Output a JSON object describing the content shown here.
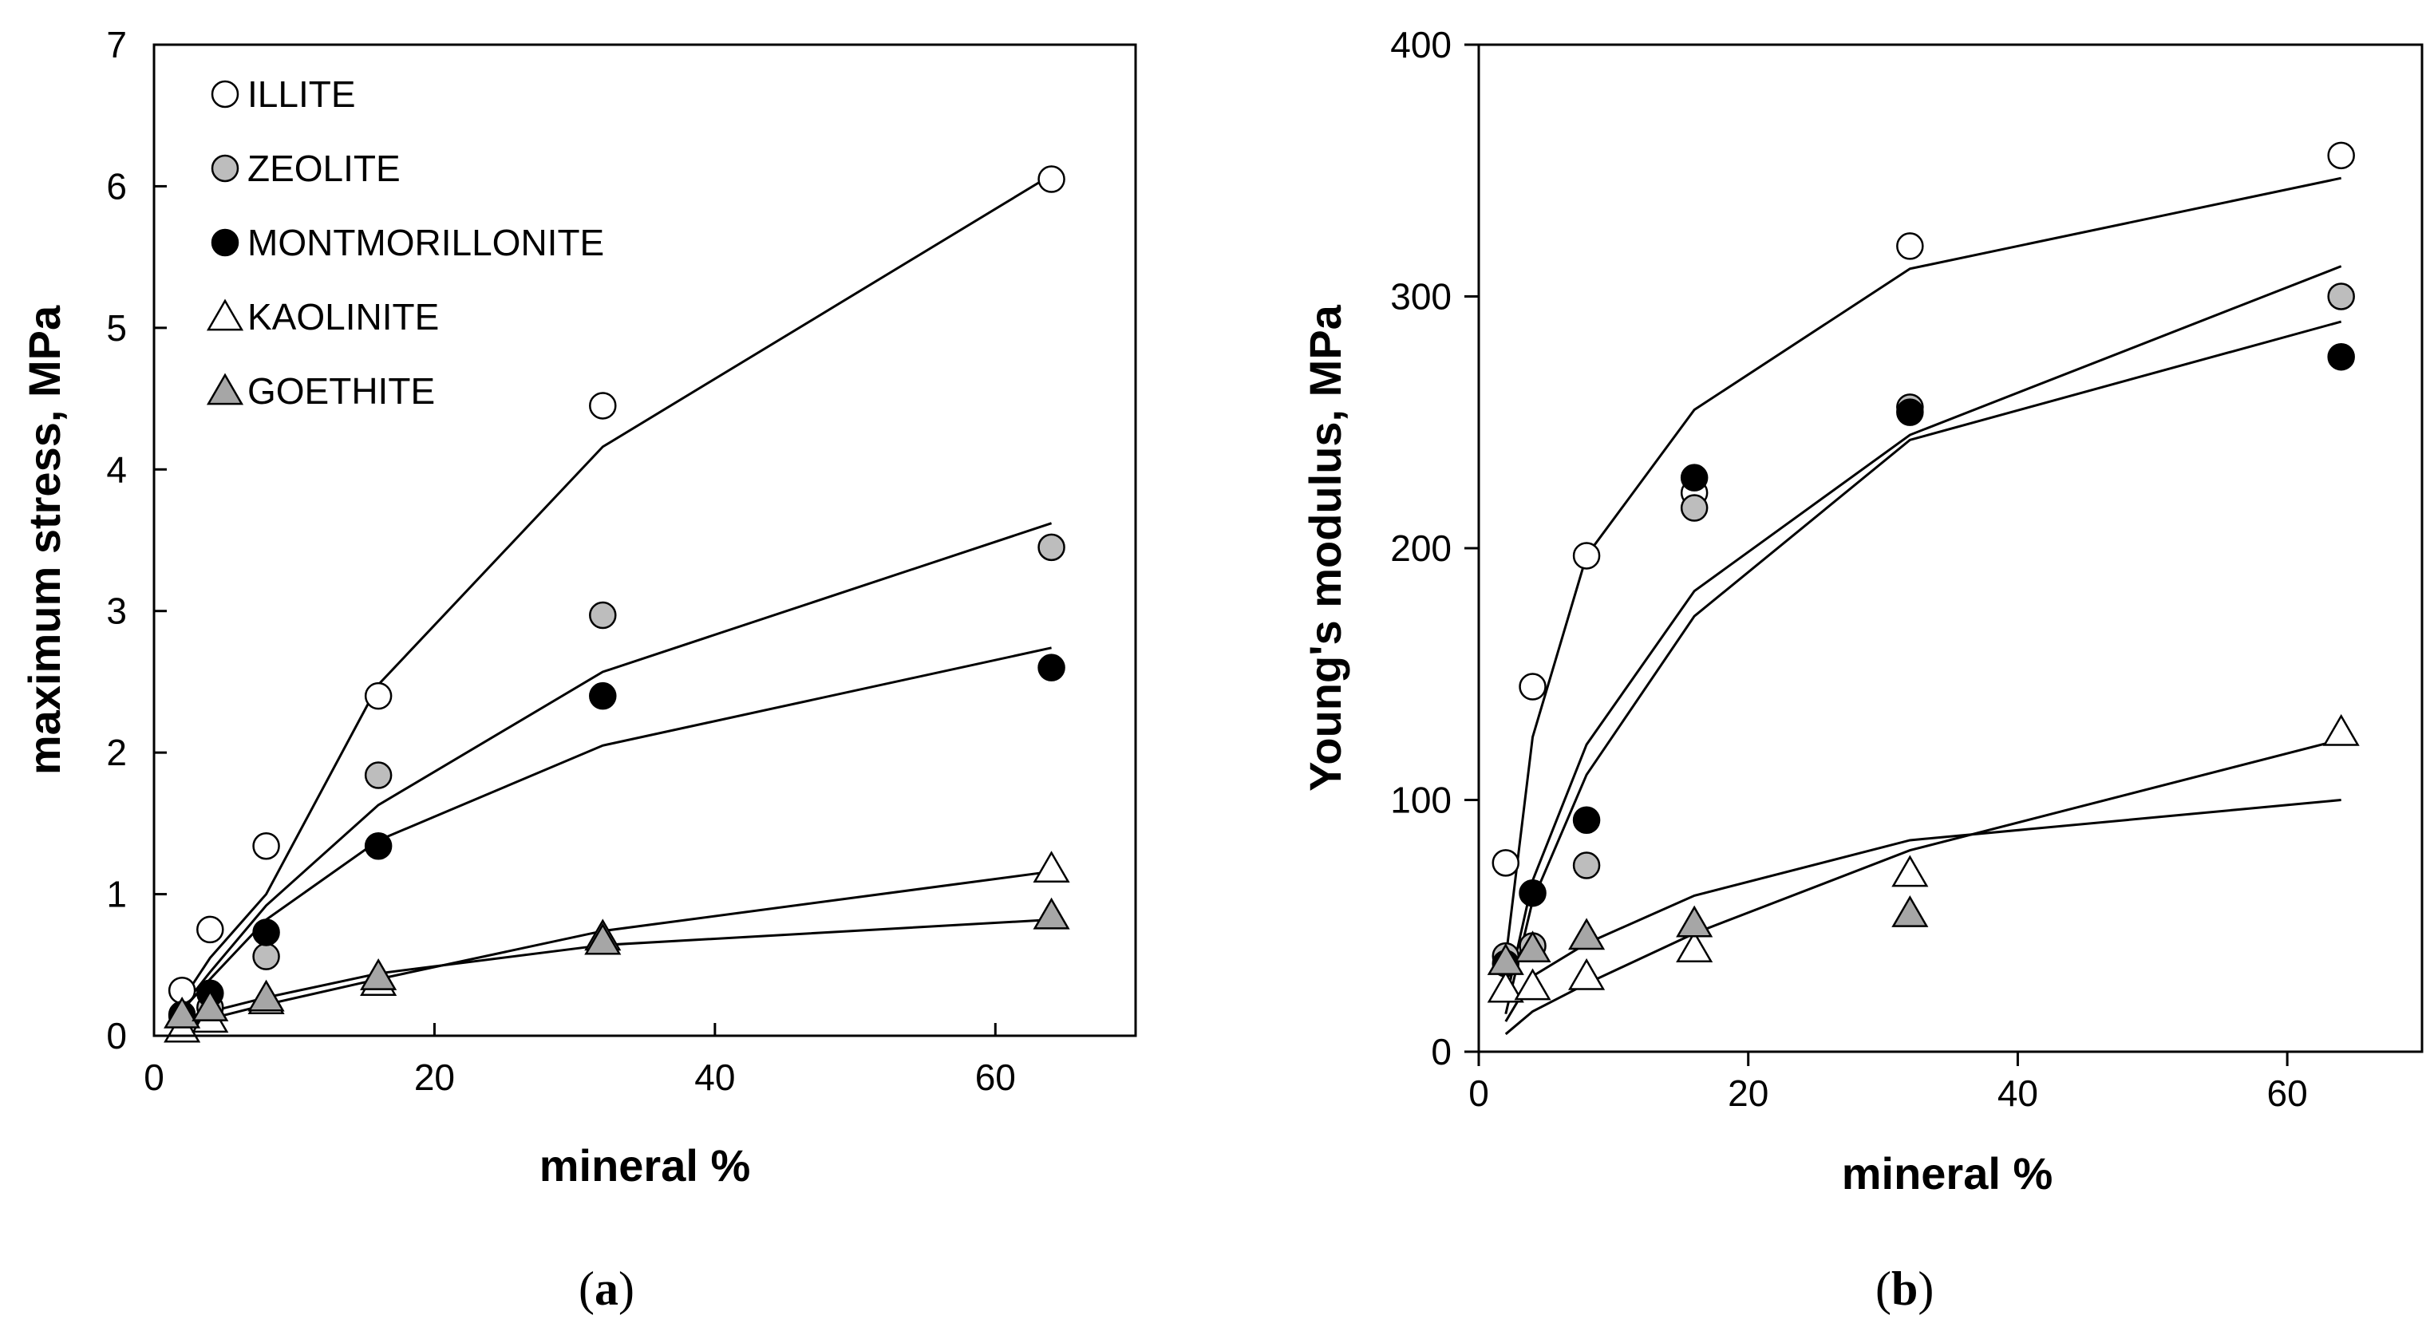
{
  "chart_data": [
    {
      "id": "a",
      "type": "scatter",
      "caption": "a",
      "xlabel": "mineral %",
      "ylabel": "maximum stress, MPa",
      "xlim": [
        0,
        70
      ],
      "ylim": [
        0,
        7
      ],
      "xticks": [
        0,
        20,
        40,
        60
      ],
      "yticks": [
        0,
        1,
        2,
        3,
        4,
        5,
        6,
        7
      ],
      "legend_position": "top-left",
      "series": [
        {
          "name": "ILLITE",
          "marker": "circle",
          "fill": "#ffffff",
          "x": [
            2,
            4,
            8,
            16,
            32,
            64
          ],
          "y": [
            0.32,
            0.75,
            1.34,
            2.4,
            4.45,
            6.05
          ],
          "fit": {
            "x": [
              2,
              4,
              8,
              16,
              32,
              64
            ],
            "y": [
              0.25,
              0.55,
              1.0,
              2.48,
              4.16,
              6.08
            ]
          }
        },
        {
          "name": "ZEOLITE",
          "marker": "circle",
          "fill": "#bdbdbd",
          "x": [
            2,
            4,
            8,
            16,
            32,
            64
          ],
          "y": [
            0.15,
            0.2,
            0.56,
            1.84,
            2.97,
            3.45
          ],
          "fit": {
            "x": [
              2,
              4,
              8,
              16,
              32,
              64
            ],
            "y": [
              0.2,
              0.45,
              0.92,
              1.63,
              2.57,
              3.62
            ]
          }
        },
        {
          "name": "MONTMORILLONITE",
          "marker": "circle",
          "fill": "#000000",
          "x": [
            2,
            4,
            8,
            16,
            32,
            64
          ],
          "y": [
            0.14,
            0.3,
            0.73,
            1.34,
            2.4,
            2.6
          ],
          "fit": {
            "x": [
              2,
              4,
              8,
              16,
              32,
              64
            ],
            "y": [
              0.18,
              0.4,
              0.82,
              1.38,
              2.05,
              2.74
            ]
          }
        },
        {
          "name": "KAOLINITE",
          "marker": "triangle",
          "fill": "#ffffff",
          "x": [
            2,
            4,
            8,
            16,
            32,
            64
          ],
          "y": [
            0.05,
            0.12,
            0.25,
            0.38,
            0.7,
            1.18
          ],
          "fit": {
            "x": [
              2,
              4,
              8,
              16,
              32,
              64
            ],
            "y": [
              0.07,
              0.12,
              0.22,
              0.4,
              0.74,
              1.16
            ]
          }
        },
        {
          "name": "GOETHITE",
          "marker": "triangle",
          "fill": "#a6a6a6",
          "x": [
            2,
            4,
            8,
            16,
            32,
            64
          ],
          "y": [
            0.15,
            0.2,
            0.27,
            0.42,
            0.67,
            0.85
          ],
          "fit": {
            "x": [
              2,
              4,
              8,
              16,
              32,
              64
            ],
            "y": [
              0.11,
              0.17,
              0.27,
              0.44,
              0.64,
              0.82
            ]
          }
        }
      ]
    },
    {
      "id": "b",
      "type": "scatter",
      "caption": "b",
      "xlabel": "mineral %",
      "ylabel": "Young's modulus, MPa",
      "xlim": [
        0,
        70
      ],
      "ylim": [
        0,
        400
      ],
      "xticks": [
        0,
        20,
        40,
        60
      ],
      "yticks": [
        0,
        100,
        200,
        300,
        400
      ],
      "series": [
        {
          "name": "ILLITE",
          "marker": "circle",
          "fill": "#ffffff",
          "x": [
            2,
            4,
            8,
            16,
            32,
            64
          ],
          "y": [
            75,
            145,
            197,
            222,
            320,
            356
          ],
          "fit": {
            "x": [
              2,
              4,
              8,
              16,
              32,
              64
            ],
            "y": [
              37,
              125,
              197,
              255,
              311,
              347
            ]
          }
        },
        {
          "name": "ZEOLITE",
          "marker": "circle",
          "fill": "#bdbdbd",
          "x": [
            2,
            4,
            8,
            16,
            32,
            64
          ],
          "y": [
            38,
            42,
            74,
            216,
            256,
            300
          ],
          "fit": {
            "x": [
              2,
              4,
              8,
              16,
              32,
              64
            ],
            "y": [
              20,
              68,
              122,
              183,
              245,
              312
            ]
          }
        },
        {
          "name": "MONTMORILLONITE",
          "marker": "circle",
          "fill": "#000000",
          "x": [
            2,
            4,
            8,
            16,
            32,
            64
          ],
          "y": [
            35,
            63,
            92,
            228,
            254,
            276
          ],
          "fit": {
            "x": [
              2,
              4,
              8,
              16,
              32,
              64
            ],
            "y": [
              15,
              60,
              110,
              173,
              243,
              290
            ]
          }
        },
        {
          "name": "KAOLINITE",
          "marker": "triangle",
          "fill": "#ffffff",
          "x": [
            2,
            4,
            8,
            16,
            32,
            64
          ],
          "y": [
            25,
            26,
            30,
            41,
            71,
            127
          ],
          "fit": {
            "x": [
              2,
              4,
              8,
              16,
              32,
              64
            ],
            "y": [
              7,
              16,
              27,
              47,
              80,
              124
            ]
          }
        },
        {
          "name": "GOETHITE",
          "marker": "triangle",
          "fill": "#a6a6a6",
          "x": [
            2,
            4,
            8,
            16,
            32
          ],
          "y": [
            36,
            41,
            46,
            51,
            55
          ],
          "fit": {
            "x": [
              2,
              4,
              8,
              16,
              32,
              64
            ],
            "y": [
              12,
              30,
              43,
              62,
              84,
              100
            ]
          }
        }
      ]
    }
  ]
}
